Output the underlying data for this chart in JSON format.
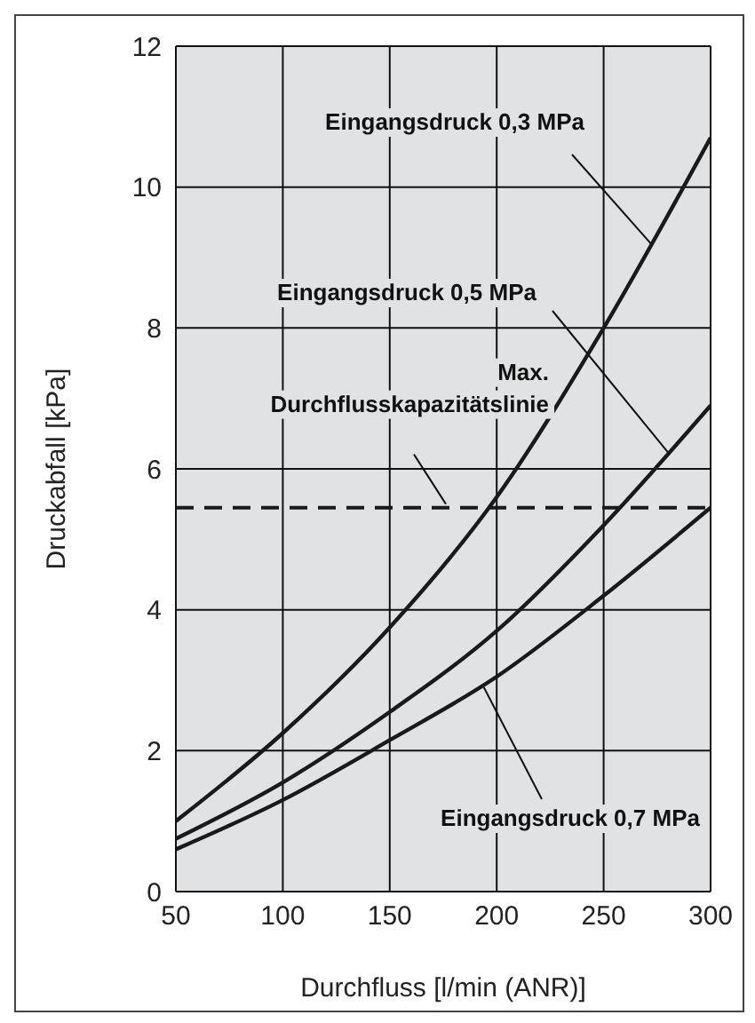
{
  "chart_data": {
    "type": "line",
    "xlabel": "Durchfluss [l/min (ANR)]",
    "ylabel": "Druckabfall [kPa]",
    "x": [
      50,
      100,
      150,
      200,
      250,
      300
    ],
    "series": [
      {
        "color": "#1a1a1a",
        "values": [
          1.0,
          2.25,
          3.75,
          5.6,
          8.0,
          10.7
        ]
      },
      {
        "color": "#1a1a1a",
        "values": [
          0.75,
          1.55,
          2.55,
          3.7,
          5.2,
          6.9
        ]
      },
      {
        "color": "#1a1a1a",
        "values": [
          0.6,
          1.3,
          2.15,
          3.05,
          4.2,
          5.45
        ]
      }
    ],
    "xlim": [
      50,
      300
    ],
    "xticks": [
      50,
      100,
      150,
      200,
      250,
      300
    ],
    "ylim": [
      0,
      12
    ],
    "yticks": [
      0,
      2,
      4,
      6,
      8,
      10,
      12
    ],
    "grid": true,
    "legend": false,
    "marker": "none",
    "line_style": "solid",
    "ref_lines": [
      {
        "axis": "y",
        "value": 5.45,
        "label": "Max. Durchflusskapazitätslinie",
        "color": "#1a1a1a",
        "line_style": "dashed"
      }
    ],
    "annotations": [
      {
        "text": "Eingangsdruck 0,3 MPa",
        "x": 272,
        "y": 9.2
      },
      {
        "text": "Eingangsdruck 0,5 MPa",
        "x": 281,
        "y": 6.2
      },
      {
        "text": "Eingangsdruck 0,7 MPa",
        "x": 194,
        "y": 2.9
      }
    ]
  }
}
